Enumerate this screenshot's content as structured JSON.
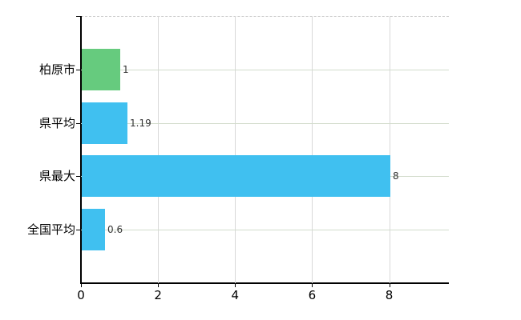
{
  "chart_data": {
    "type": "bar",
    "orientation": "horizontal",
    "title": "",
    "xlabel": "",
    "ylabel": "",
    "categories": [
      "柏原市",
      "県平均",
      "県最大",
      "全国平均"
    ],
    "values": [
      1,
      1.19,
      8,
      0.6
    ],
    "value_labels": [
      "1",
      "1.19",
      "8",
      "0.6"
    ],
    "bar_colors": [
      "#66cb7e",
      "#40c0f0",
      "#40c0f0",
      "#40c0f0"
    ],
    "x_ticks": [
      0,
      2,
      4,
      6,
      8
    ],
    "x_tick_labels": [
      "0",
      "2",
      "4",
      "6",
      "8"
    ],
    "xlim": [
      0,
      9.55
    ],
    "grid": true,
    "legend": false,
    "colors": {
      "background": "#ffffff",
      "axis": "#000000",
      "gridline_vertical": "#d8d8d8",
      "gridline_horizontal": "#d2dccc",
      "top_border_dashed": "#c9c9c9",
      "green_bar": "#66cb7e",
      "blue_bar": "#40c0f0",
      "label_text": "#000000",
      "value_text": "#333333"
    }
  }
}
